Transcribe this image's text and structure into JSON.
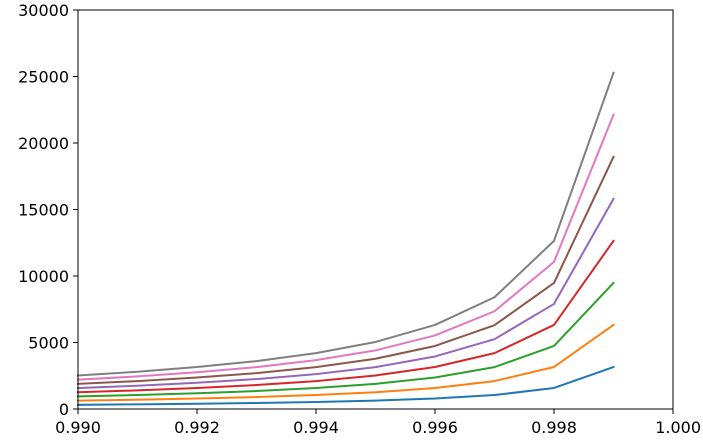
{
  "chart_data": {
    "type": "line",
    "title": "",
    "xlabel": "",
    "ylabel": "",
    "xlim": [
      0.99,
      1.0
    ],
    "ylim": [
      0,
      30000
    ],
    "grid": false,
    "x": [
      0.99,
      0.991,
      0.992,
      0.993,
      0.994,
      0.995,
      0.996,
      0.997,
      0.998,
      0.999
    ],
    "x_ticks": [
      0.99,
      0.992,
      0.994,
      0.996,
      0.998,
      1.0
    ],
    "x_tick_labels": [
      "0.990",
      "0.992",
      "0.994",
      "0.996",
      "0.998",
      "1.000"
    ],
    "y_ticks": [
      0,
      5000,
      10000,
      15000,
      20000,
      25000,
      30000
    ],
    "y_tick_labels": [
      "0",
      "5000",
      "10000",
      "15000",
      "20000",
      "25000",
      "30000"
    ],
    "series": [
      {
        "color": "#1f77b4",
        "values": [
          315,
          350,
          395,
          450,
          525,
          630,
          790,
          1050,
          1580,
          3160
        ]
      },
      {
        "color": "#ff7f0e",
        "values": [
          630,
          700,
          790,
          900,
          1050,
          1260,
          1580,
          2100,
          3160,
          6320
        ]
      },
      {
        "color": "#2ca02c",
        "values": [
          945,
          1050,
          1185,
          1350,
          1575,
          1890,
          2370,
          3150,
          4740,
          9480
        ]
      },
      {
        "color": "#d62728",
        "values": [
          1260,
          1400,
          1580,
          1800,
          2100,
          2520,
          3160,
          4200,
          6320,
          12640
        ]
      },
      {
        "color": "#9467bd",
        "values": [
          1575,
          1750,
          1975,
          2250,
          2625,
          3150,
          3950,
          5250,
          7900,
          15800
        ]
      },
      {
        "color": "#8c564b",
        "values": [
          1890,
          2100,
          2370,
          2700,
          3150,
          3780,
          4740,
          6300,
          9480,
          18960
        ]
      },
      {
        "color": "#e377c2",
        "values": [
          2205,
          2450,
          2765,
          3150,
          3675,
          4410,
          5530,
          7350,
          11060,
          22120
        ]
      },
      {
        "color": "#7f7f7f",
        "values": [
          2520,
          2800,
          3160,
          3600,
          4200,
          5040,
          6320,
          8400,
          12640,
          25280
        ]
      }
    ]
  }
}
